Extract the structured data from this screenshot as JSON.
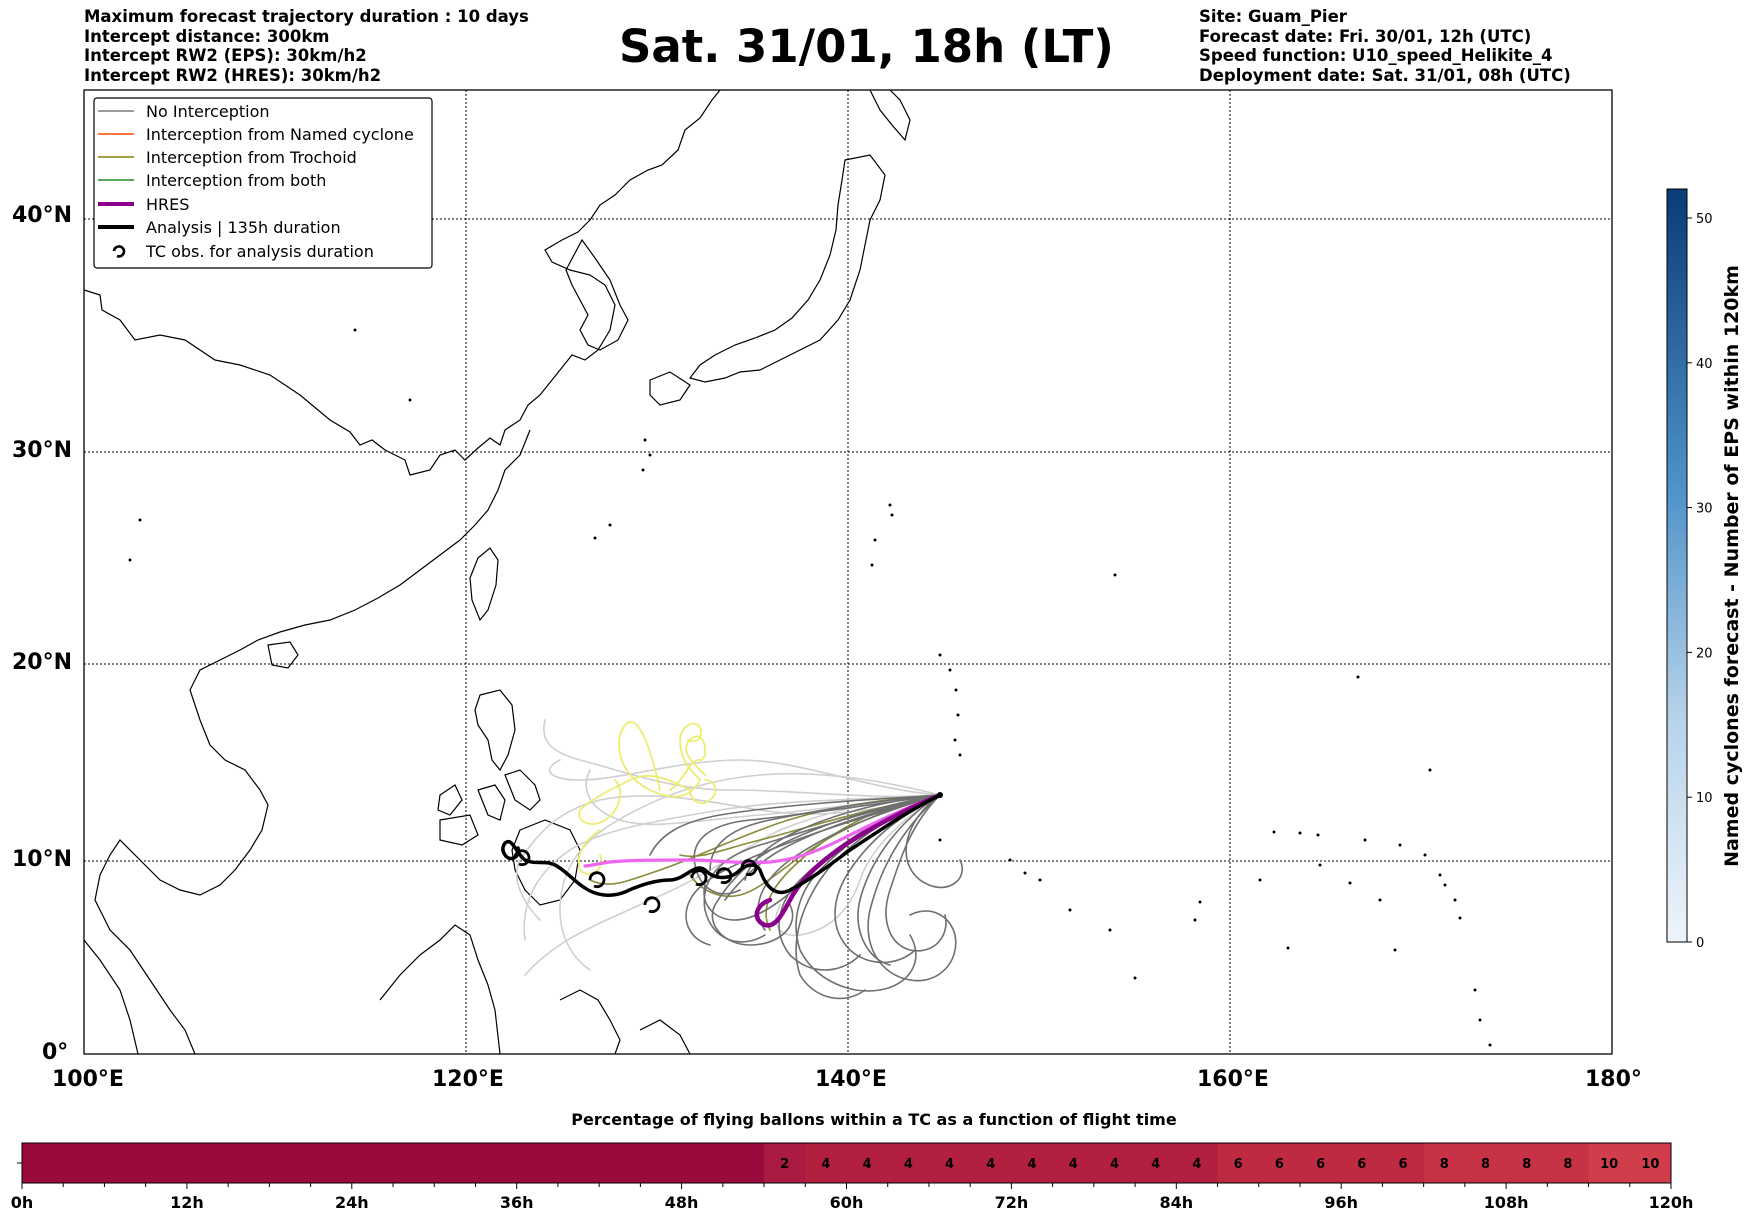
{
  "header": {
    "left_lines": [
      "Maximum forecast trajectory duration : 10 days",
      "Intercept distance: 300km",
      "Intercept RW2 (EPS):  30km/h2",
      "Intercept RW2 (HRES): 30km/h2"
    ],
    "title": "Sat. 31/01, 18h (LT)",
    "right_lines": [
      "Site: Guam_Pier",
      "Forecast date: Fri. 30/01, 12h (UTC)",
      "Speed function: U10_speed_Helikite_4",
      "Deployment date: Sat. 31/01, 08h (UTC)"
    ]
  },
  "map": {
    "lon_ticks": [
      "100°E",
      "120°E",
      "140°E",
      "160°E",
      "180°"
    ],
    "lat_ticks": [
      "40°N",
      "30°N",
      "20°N",
      "10°N",
      "0°"
    ],
    "lon_range": [
      100,
      180
    ],
    "lat_range": [
      0,
      46
    ],
    "grid": true,
    "site": {
      "name": "Guam_Pier",
      "lon": 144.6,
      "lat": 13.4
    }
  },
  "legend": {
    "placement": "top-left",
    "entries": [
      {
        "label": "No Interception",
        "color": "#7f7f7f"
      },
      {
        "label": "Interception from Named cyclone",
        "color": "#ff4500"
      },
      {
        "label": "Interception from Trochoid",
        "color": "#808000"
      },
      {
        "label": "Interception from both",
        "color": "#228b22"
      },
      {
        "label": "HRES",
        "color": "#8b008b"
      },
      {
        "label": "Analysis | 135h duration",
        "color": "#000000"
      },
      {
        "label": "TC obs. for analysis duration",
        "color": "#000000",
        "icon": "tc-symbol-icon"
      }
    ]
  },
  "colorbar": {
    "label": "Named cyclones forecast - Number of EPS within 120km",
    "ticks": [
      "0",
      "10",
      "20",
      "30",
      "40",
      "50"
    ],
    "max": 52,
    "color_low": "#eef4fb",
    "color_high": "#0b3a78"
  },
  "bottom_bar": {
    "title": "Percentage of flying ballons within a TC as a function of flight time",
    "time_ticks": [
      "0h",
      "12h",
      "24h",
      "36h",
      "48h",
      "60h",
      "72h",
      "84h",
      "96h",
      "108h",
      "120h"
    ],
    "max_hours": 120,
    "base_color": "#9b0a3c",
    "segments": [
      {
        "start_h": 54,
        "end_h": 57,
        "value": "2",
        "color": "#ab1a40"
      },
      {
        "start_h": 57,
        "end_h": 87,
        "values": [
          "4",
          "4",
          "4",
          "4",
          "4",
          "4",
          "4",
          "4",
          "4",
          "4"
        ],
        "color": "#b3203f"
      },
      {
        "start_h": 87,
        "end_h": 102,
        "values": [
          "6",
          "6",
          "6",
          "6",
          "6"
        ],
        "color": "#bf2a43"
      },
      {
        "start_h": 102,
        "end_h": 114,
        "values": [
          "8",
          "8",
          "8",
          "8"
        ],
        "color": "#c73246"
      },
      {
        "start_h": 114,
        "end_h": 120,
        "values": [
          "10",
          "10"
        ],
        "color": "#d13d4b"
      }
    ]
  }
}
